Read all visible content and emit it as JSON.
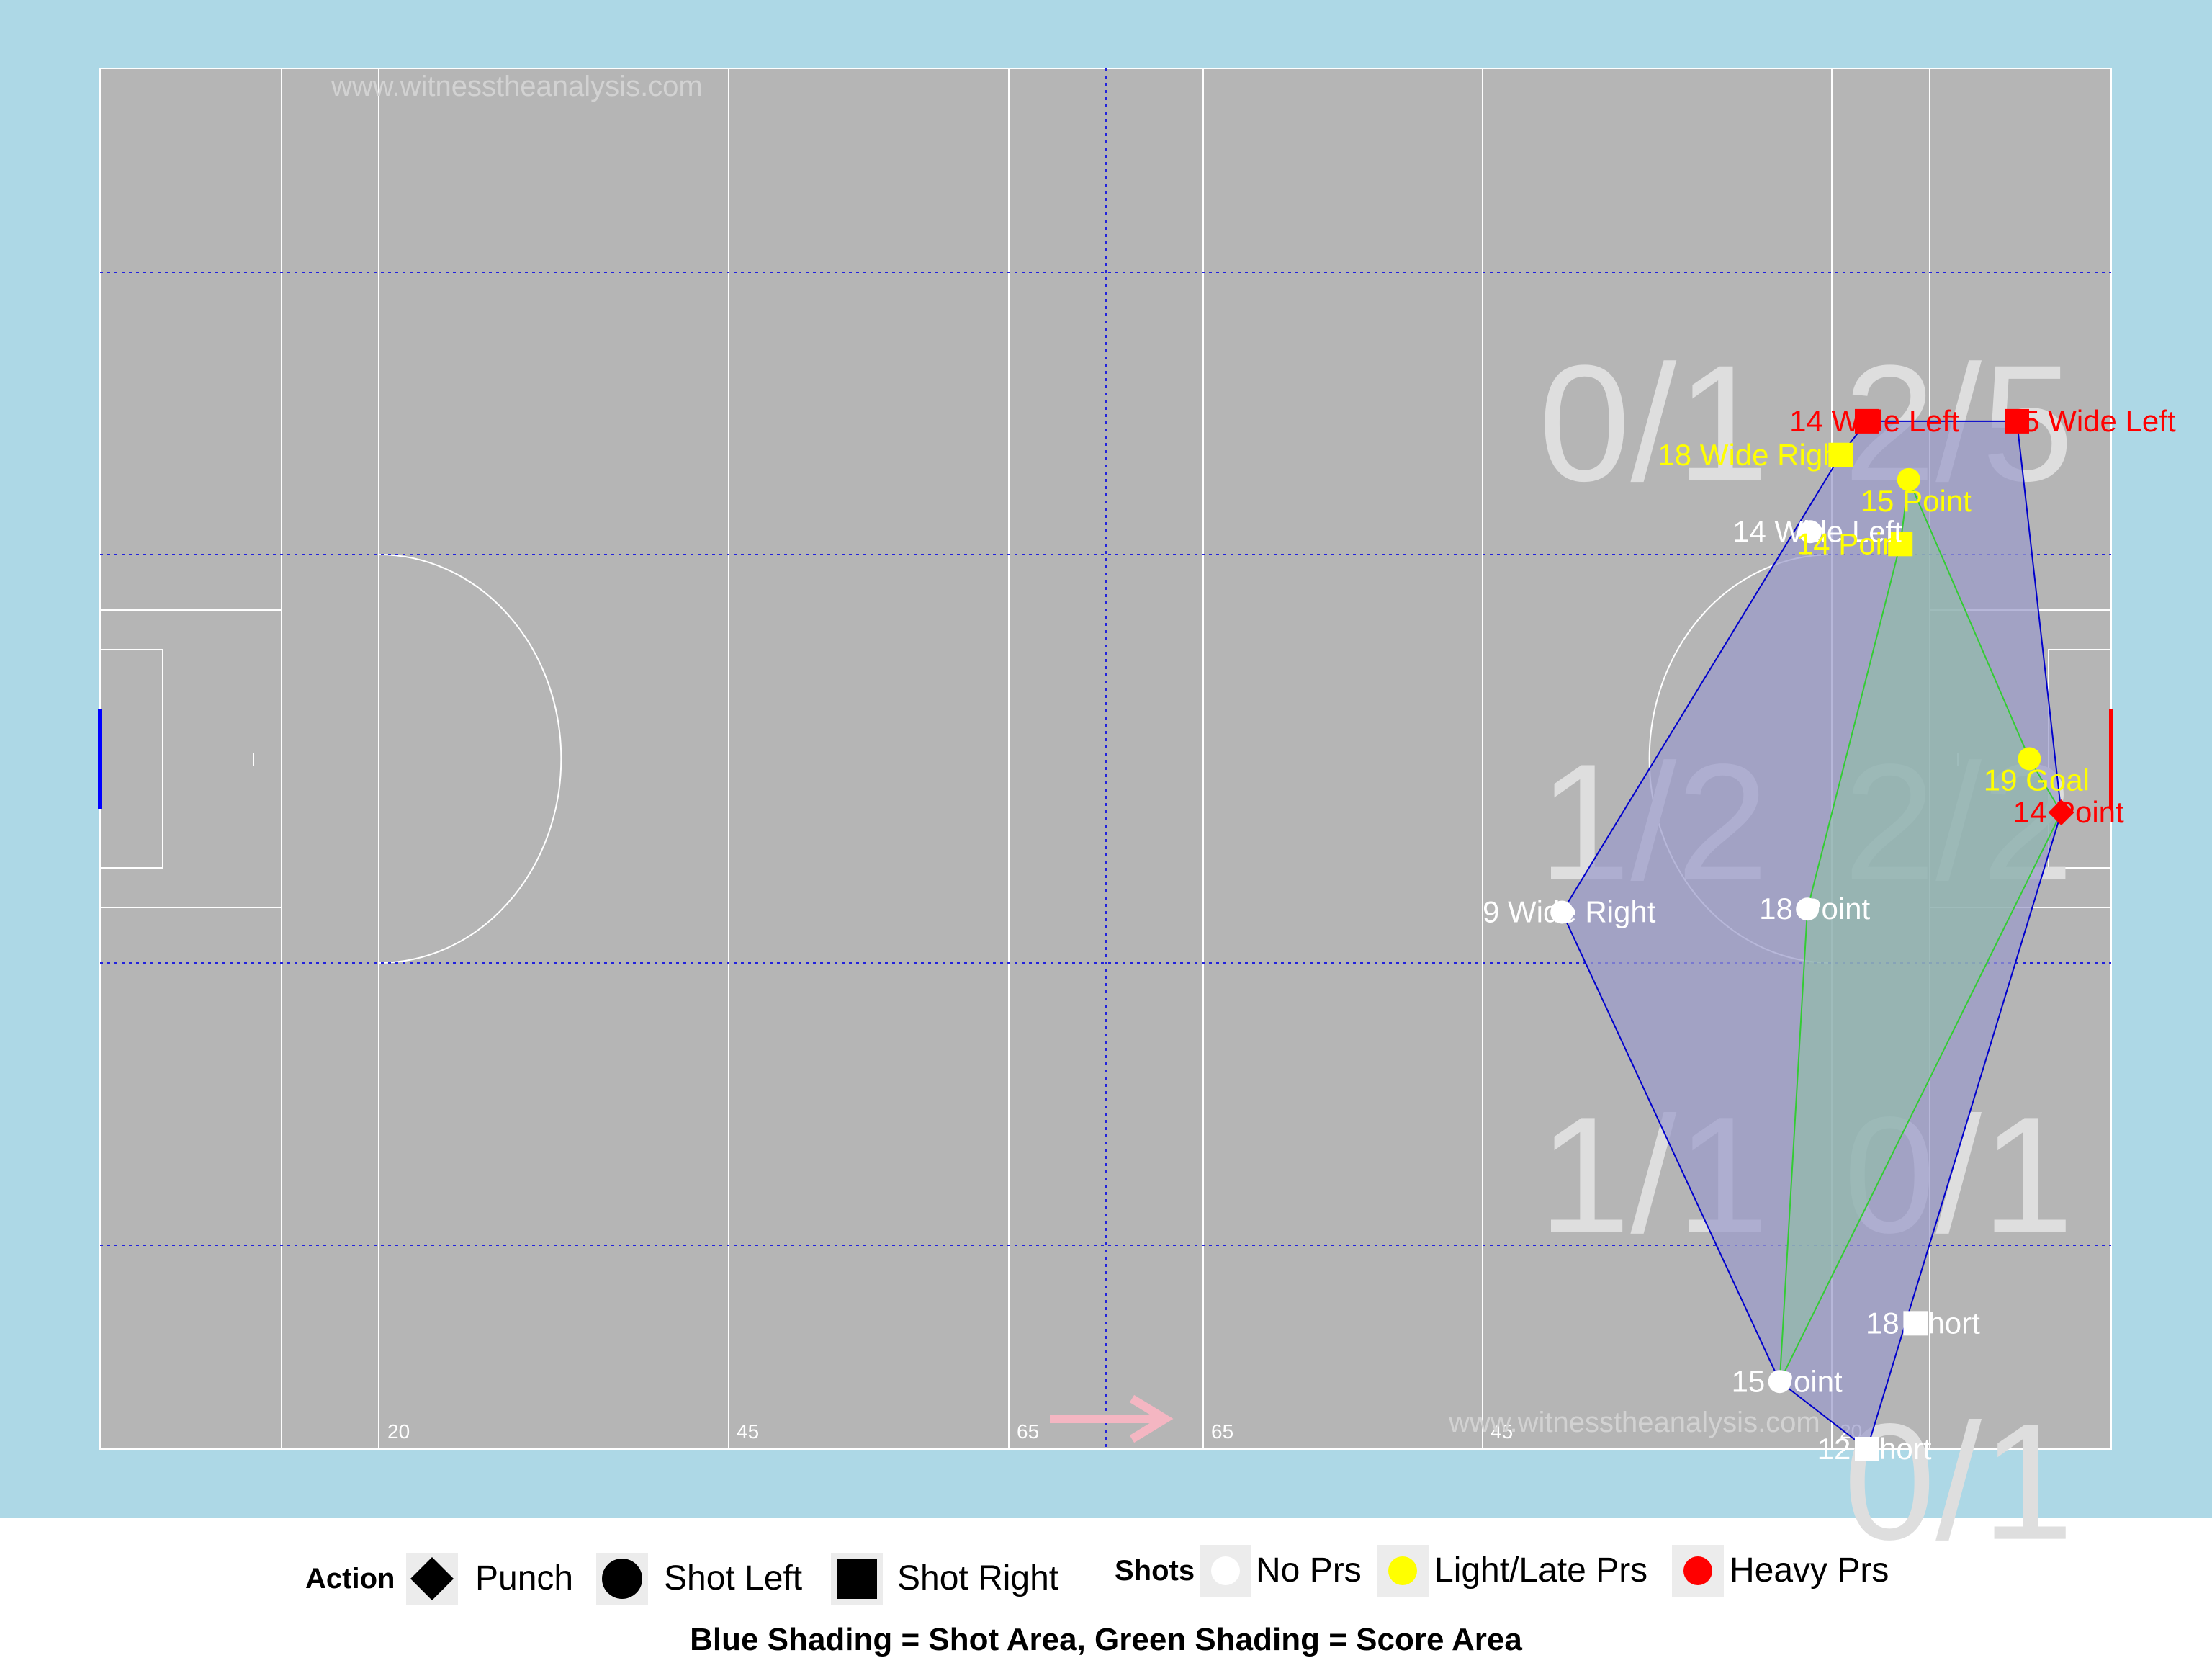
{
  "watermarks": [
    "www.witnesstheanalysis.com",
    "www.witnesstheanalysis.com"
  ],
  "pitch_labels": [
    "20",
    "45",
    "65",
    "65",
    "45",
    "20"
  ],
  "colors": {
    "background": "#add8e6",
    "pitch": "#b5b5b5",
    "no_pressure": "#ffffff",
    "light_pressure": "#ffff00",
    "heavy_pressure": "#ff0000",
    "shot_area_fill": "#9b9bcb",
    "shot_area_line": "#0000cc",
    "score_area_fill": "#8fc0a6",
    "score_area_line": "#33cc33",
    "zone_text": "#dedede",
    "arrow": "#f4b6c2"
  },
  "chart_data": {
    "type": "scatter",
    "title": "",
    "xlabel": "",
    "ylabel": "",
    "x_units": "metres from left end line (pitch length 145)",
    "y_units": "metres across pitch (width 90)",
    "xlim": [
      0,
      145
    ],
    "ylim": [
      0,
      90
    ],
    "shots": [
      {
        "label": "14 Wide Left",
        "x": 127.4,
        "y": 23.0,
        "shape": "square",
        "pressure": "heavy"
      },
      {
        "label": "5 Wide Left",
        "x": 138.2,
        "y": 23.0,
        "shape": "square",
        "pressure": "heavy"
      },
      {
        "label": "18 Wide Right",
        "x": 125.5,
        "y": 25.2,
        "shape": "square",
        "pressure": "light"
      },
      {
        "label": "15 Point",
        "x": 130.4,
        "y": 26.8,
        "shape": "circle",
        "pressure": "light"
      },
      {
        "label": "14 Wide Left",
        "x": 123.3,
        "y": 30.2,
        "shape": "circle",
        "pressure": "none"
      },
      {
        "label": "14 Point",
        "x": 129.8,
        "y": 31.0,
        "shape": "square",
        "pressure": "light"
      },
      {
        "label": "19 Goal",
        "x": 139.1,
        "y": 45.0,
        "shape": "circle",
        "pressure": "light"
      },
      {
        "label": "14 Point",
        "x": 141.4,
        "y": 48.5,
        "shape": "diamond",
        "pressure": "heavy"
      },
      {
        "label": "9 Wide Right",
        "x": 105.4,
        "y": 55.0,
        "shape": "circle",
        "pressure": "none"
      },
      {
        "label": "18 Point",
        "x": 123.1,
        "y": 54.8,
        "shape": "circle",
        "pressure": "none"
      },
      {
        "label": "18 Short",
        "x": 130.9,
        "y": 81.8,
        "shape": "square",
        "pressure": "none"
      },
      {
        "label": "15 Point",
        "x": 121.1,
        "y": 85.6,
        "shape": "circle",
        "pressure": "none"
      },
      {
        "label": "12 Short",
        "x": 127.4,
        "y": 90.0,
        "shape": "square",
        "pressure": "none"
      }
    ],
    "shot_area_hull": [
      [
        127.4,
        23.0
      ],
      [
        138.2,
        23.0
      ],
      [
        141.4,
        48.5
      ],
      [
        127.4,
        90.0
      ],
      [
        121.1,
        85.6
      ],
      [
        105.4,
        55.0
      ],
      [
        125.5,
        25.2
      ]
    ],
    "score_area_hull": [
      [
        130.4,
        26.8
      ],
      [
        139.1,
        45.0
      ],
      [
        141.4,
        48.5
      ],
      [
        121.1,
        85.6
      ],
      [
        123.1,
        54.8
      ],
      [
        129.8,
        31.0
      ]
    ],
    "zone_labels": [
      {
        "text": "0/1",
        "x": 112,
        "y": 24
      },
      {
        "text": "2/5",
        "x": 134,
        "y": 24
      },
      {
        "text": "1/2",
        "x": 112,
        "y": 50
      },
      {
        "text": "2/2",
        "x": 134,
        "y": 50
      },
      {
        "text": "1/1",
        "x": 112,
        "y": 73
      },
      {
        "text": "0/1",
        "x": 134,
        "y": 73
      },
      {
        "text": "0/1",
        "x": 134,
        "y": 93
      }
    ]
  },
  "legend": {
    "action_title": "Action",
    "actions": [
      {
        "label": "Punch",
        "icon": "diamond-icon"
      },
      {
        "label": "Shot Left",
        "icon": "circle-icon"
      },
      {
        "label": "Shot Right",
        "icon": "square-icon"
      }
    ],
    "shots_title": "Shots",
    "shots": [
      {
        "label": "No Prs",
        "color": "#ffffff"
      },
      {
        "label": "Light/Late Prs",
        "color": "#ffff00"
      },
      {
        "label": "Heavy Prs",
        "color": "#ff0000"
      }
    ]
  },
  "footer": "Blue Shading = Shot Area, Green Shading = Score Area"
}
